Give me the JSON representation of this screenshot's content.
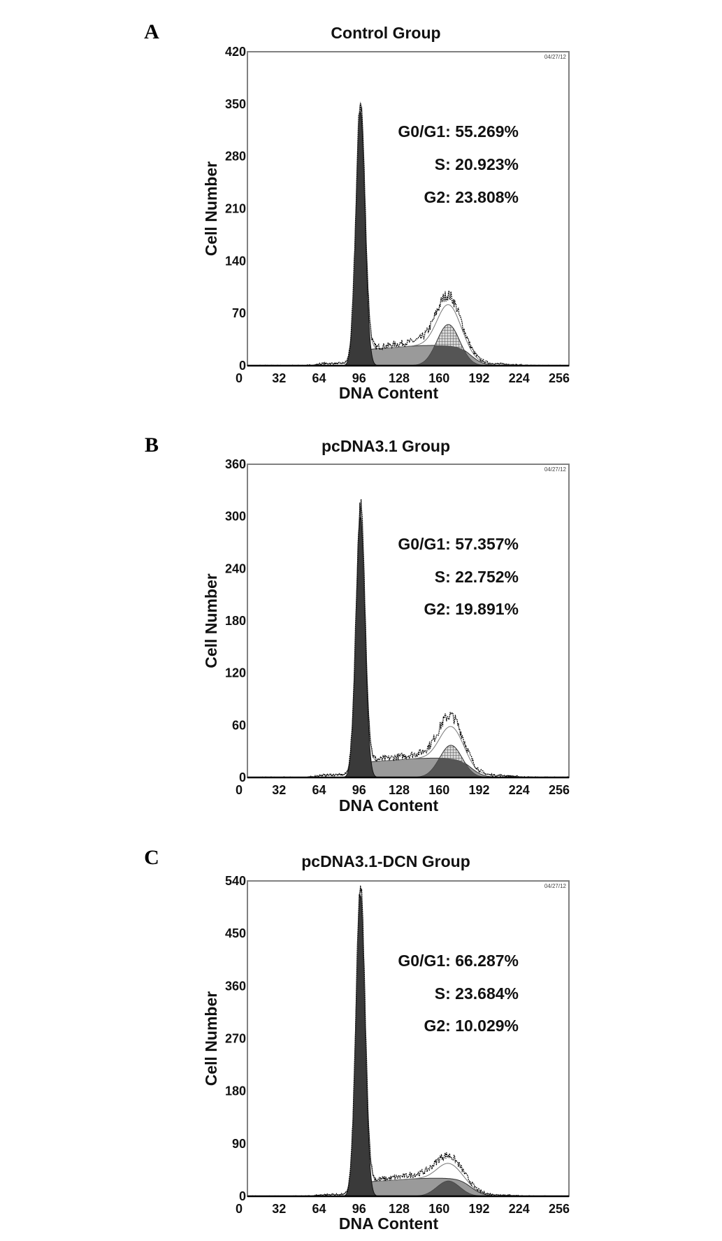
{
  "chart_data": [
    {
      "type": "area",
      "panel_label": "A",
      "title": "Control Group",
      "xlabel": "DNA Content",
      "ylabel": "Cell Number",
      "xlim": [
        0,
        256
      ],
      "ylim": [
        0,
        420
      ],
      "xticks": [
        0,
        32,
        64,
        96,
        128,
        160,
        192,
        224,
        256
      ],
      "yticks": [
        0,
        70,
        140,
        210,
        280,
        350,
        420
      ],
      "date_stamp": "04/27/12",
      "annotations": [
        "G0/G1: 55.269%",
        "S: 20.923%",
        "G2: 23.808%"
      ],
      "phases": {
        "G0/G1": 55.269,
        "S": 20.923,
        "G2": 23.808
      },
      "g1_peak": {
        "channel": 90,
        "count": 340
      },
      "s_level": 22,
      "g2_peak": {
        "channel": 160,
        "count": 55
      },
      "raw_max": 70
    },
    {
      "type": "area",
      "panel_label": "B",
      "title": "pcDNA3.1 Group",
      "xlabel": "DNA Content",
      "ylabel": "Cell Number",
      "xlim": [
        0,
        256
      ],
      "ylim": [
        0,
        360
      ],
      "xticks": [
        0,
        32,
        64,
        96,
        128,
        160,
        192,
        224,
        256
      ],
      "yticks": [
        0,
        60,
        120,
        180,
        240,
        300,
        360
      ],
      "date_stamp": "04/27/12",
      "annotations": [
        "G0/G1: 57.357%",
        "S: 22.752%",
        "G2: 19.891%"
      ],
      "phases": {
        "G0/G1": 57.357,
        "S": 22.752,
        "G2": 19.891
      },
      "g1_peak": {
        "channel": 90,
        "count": 300
      },
      "s_level": 18,
      "g2_peak": {
        "channel": 162,
        "count": 37
      },
      "raw_max": 52
    },
    {
      "type": "area",
      "panel_label": "C",
      "title": "pcDNA3.1-DCN Group",
      "xlabel": "DNA Content",
      "ylabel": "Cell Number",
      "xlim": [
        0,
        256
      ],
      "ylim": [
        0,
        540
      ],
      "xticks": [
        0,
        32,
        64,
        96,
        128,
        160,
        192,
        224,
        256
      ],
      "yticks": [
        0,
        90,
        180,
        270,
        360,
        450,
        540
      ],
      "date_stamp": "04/27/12",
      "annotations": [
        "G0/G1: 66.287%",
        "S: 23.684%",
        "G2: 10.029%"
      ],
      "phases": {
        "G0/G1": 66.287,
        "S": 23.684,
        "G2": 10.029
      },
      "g1_peak": {
        "channel": 90,
        "count": 515
      },
      "s_level": 25,
      "g2_peak": {
        "channel": 160,
        "count": 26
      },
      "raw_max": 42
    }
  ],
  "colors": {
    "g1_fill": "#3a3a3a",
    "s_fill": "#9a9a9a",
    "g2_fill": "#bdbdbd",
    "overlap_fill": "#555555",
    "axis": "#808080"
  }
}
